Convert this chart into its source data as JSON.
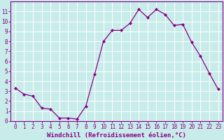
{
  "x": [
    0,
    1,
    2,
    3,
    4,
    5,
    6,
    7,
    8,
    9,
    10,
    11,
    12,
    13,
    14,
    15,
    16,
    17,
    18,
    19,
    20,
    21,
    22,
    23
  ],
  "y": [
    3.3,
    2.7,
    2.5,
    1.3,
    1.2,
    0.3,
    0.3,
    0.2,
    1.5,
    4.7,
    8.0,
    9.1,
    9.1,
    9.8,
    11.2,
    10.4,
    11.2,
    10.7,
    9.6,
    9.7,
    7.9,
    6.5,
    4.8,
    3.2
  ],
  "line_color": "#880088",
  "marker": "D",
  "markersize": 2,
  "linewidth": 0.9,
  "xlabel": "Windchill (Refroidissement éolien,°C)",
  "bg_color": "#c8ecea",
  "grid_color": "#ffffff",
  "xlim": [
    -0.5,
    23.5
  ],
  "ylim": [
    0,
    12
  ],
  "xtick_labels": [
    "0",
    "1",
    "2",
    "3",
    "4",
    "5",
    "6",
    "7",
    "8",
    "9",
    "10",
    "11",
    "12",
    "13",
    "14",
    "15",
    "16",
    "17",
    "18",
    "19",
    "20",
    "21",
    "22",
    "23"
  ],
  "ytick_labels": [
    "0",
    "1",
    "2",
    "3",
    "4",
    "5",
    "6",
    "7",
    "8",
    "9",
    "10",
    "11"
  ],
  "tick_color": "#880088",
  "tick_fontsize": 5.5,
  "xlabel_fontsize": 6.5,
  "spine_color": "#880088"
}
